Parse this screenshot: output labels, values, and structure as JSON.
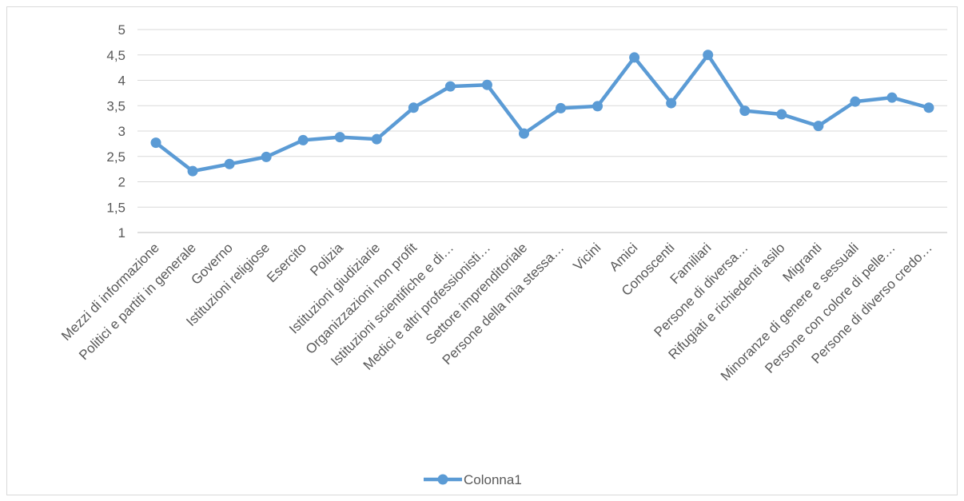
{
  "chart_data": {
    "type": "line",
    "categories": [
      "Mezzi di informazione",
      "Politici e partiti in generale",
      "Governo",
      "Istituzioni religiose",
      "Esercito",
      "Polizia",
      "Istituzioni giudiziarie",
      "Organizzazioni non profit",
      "Istituzioni scientifiche e di…",
      "Medici e altri professionisti…",
      "Settore imprenditoriale",
      "Persone della mia stessa…",
      "Vicini",
      "Amici",
      "Conoscenti",
      "Familiari",
      "Persone di diversa…",
      "Rifugiati e richiedenti asilo",
      "Migranti",
      "Minoranze di genere e sessuali",
      "Persone con colore di pelle…",
      "Persone di diverso credo…"
    ],
    "series": [
      {
        "name": "Colonna1",
        "color": "#5b9bd5",
        "values": [
          2.77,
          2.21,
          2.35,
          2.49,
          2.82,
          2.88,
          2.84,
          3.46,
          3.88,
          3.91,
          2.95,
          3.45,
          3.49,
          4.45,
          3.55,
          4.5,
          3.4,
          3.33,
          3.1,
          3.58,
          3.66,
          3.46
        ]
      }
    ],
    "ylim": [
      1,
      5
    ],
    "yticks": [
      "1",
      "1,5",
      "2",
      "2,5",
      "3",
      "3,5",
      "4",
      "4,5",
      "5"
    ],
    "ytick_values": [
      1,
      1.5,
      2,
      2.5,
      3,
      3.5,
      4,
      4.5,
      5
    ],
    "grid": true,
    "legend_position": "bottom"
  }
}
